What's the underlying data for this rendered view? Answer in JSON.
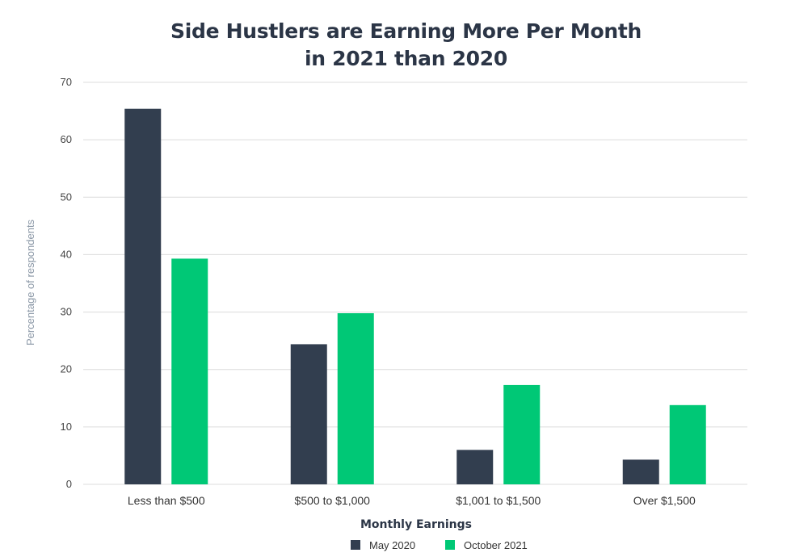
{
  "chart_data": {
    "type": "bar",
    "title": [
      "Side Hustlers are Earning More Per Month",
      "in 2021 than 2020"
    ],
    "xlabel": "Monthly Earnings",
    "ylabel": "Percentage of respondents",
    "ylim": [
      0,
      70
    ],
    "yticks": [
      0,
      10,
      20,
      30,
      40,
      50,
      60,
      70
    ],
    "grid": "horizontal",
    "legend_position": "bottom",
    "categories": [
      "Less than $500",
      "$500 to $1,000",
      "$1,001 to $1,500",
      "Over $1,500"
    ],
    "series": [
      {
        "name": "May 2020",
        "color": "#323e4f",
        "values": [
          65.4,
          24.4,
          6.0,
          4.3
        ]
      },
      {
        "name": "October 2021",
        "color": "#00c876",
        "values": [
          39.3,
          29.8,
          17.3,
          13.8
        ]
      }
    ]
  }
}
